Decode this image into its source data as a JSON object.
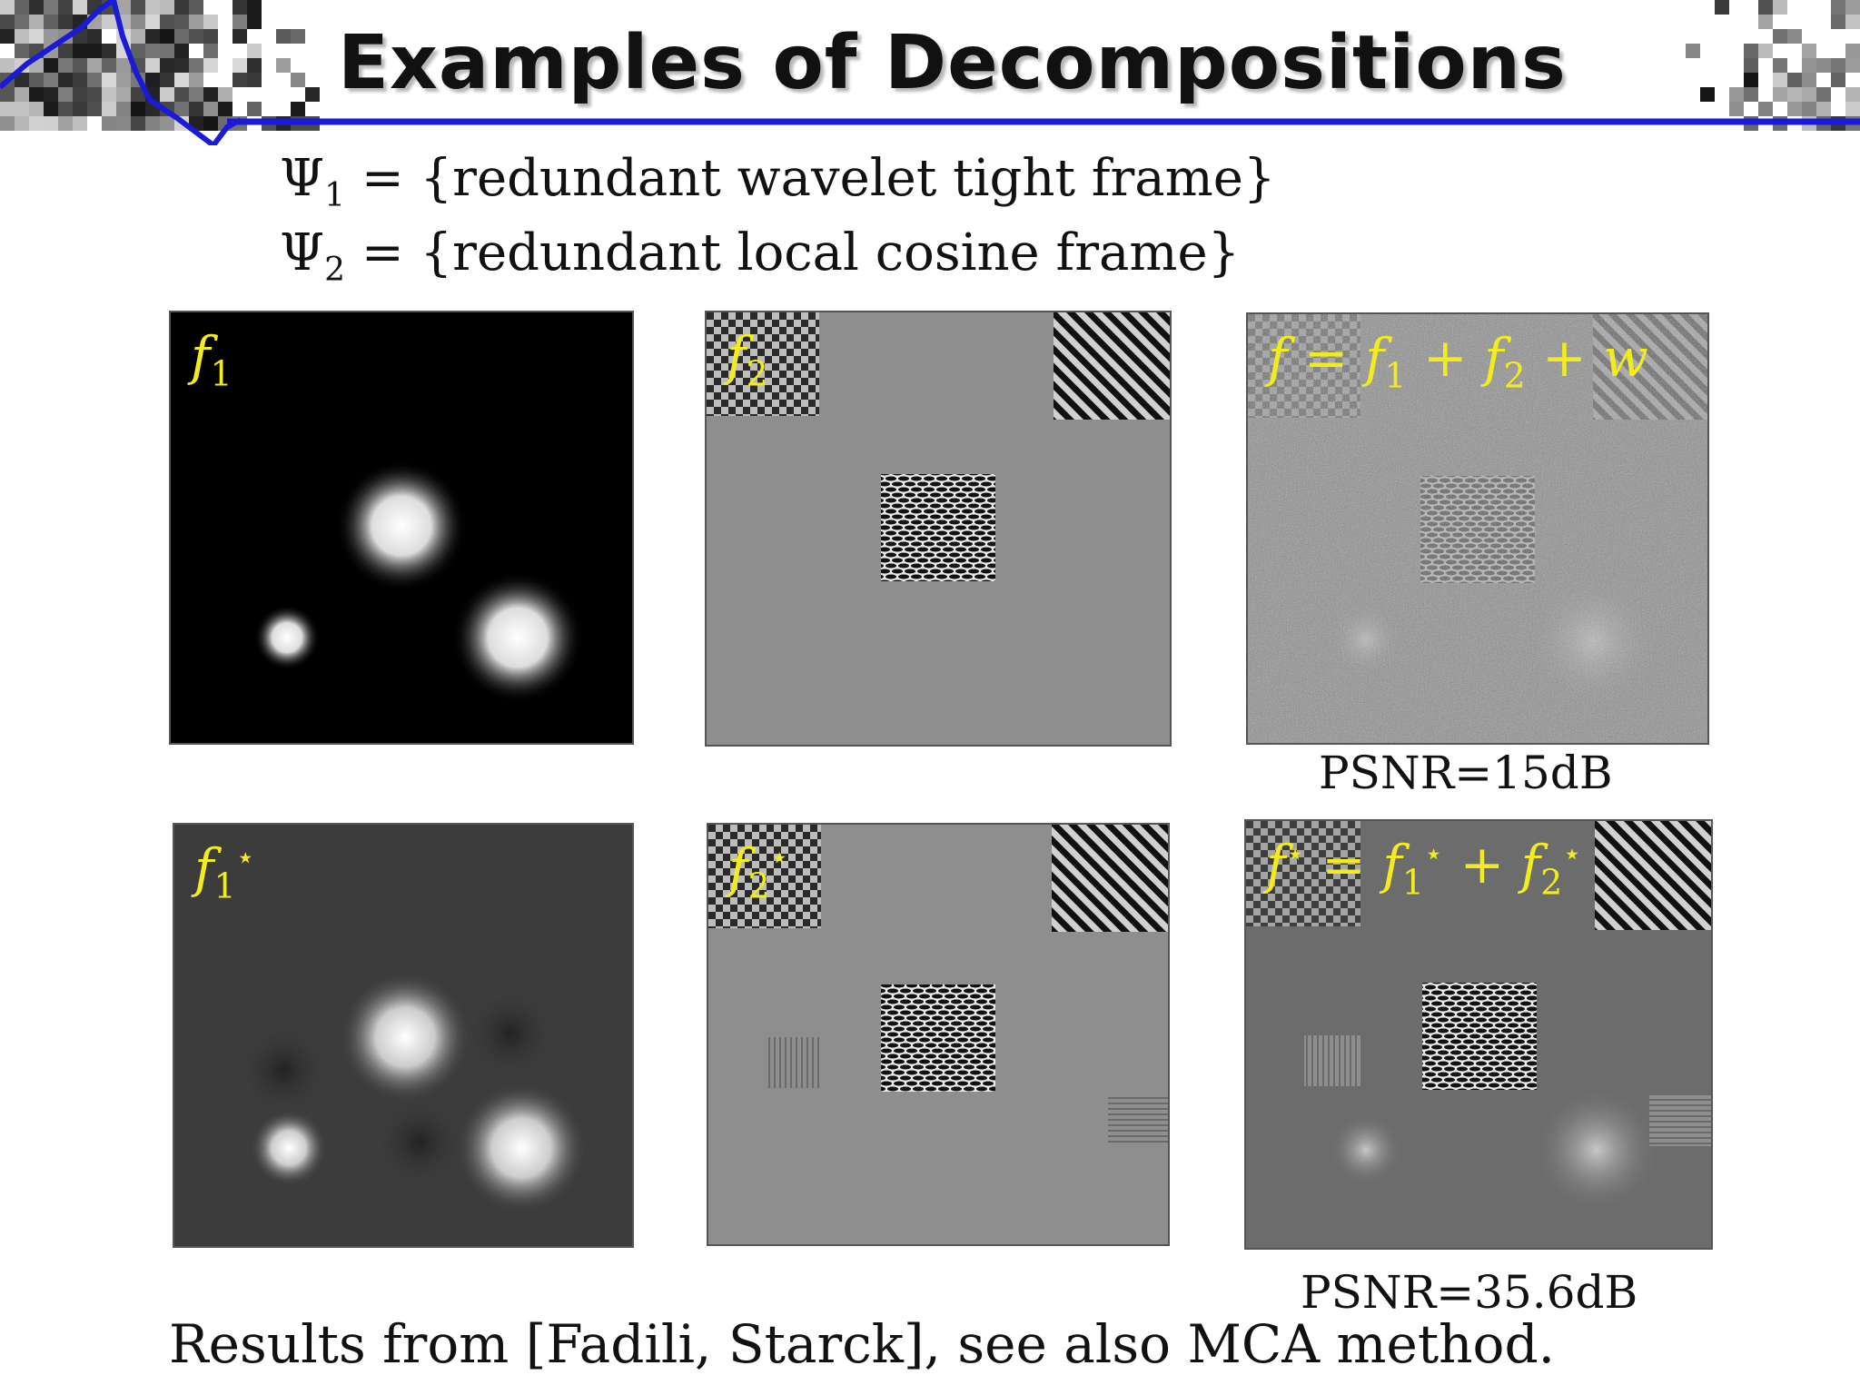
{
  "slide": {
    "title": "Examples of Decompositions",
    "definitions": [
      {
        "symbol": "Ψ",
        "index": "1",
        "text": " = {redundant wavelet tight frame}"
      },
      {
        "symbol": "Ψ",
        "index": "2",
        "text": " = {redundant local cosine frame}"
      }
    ]
  },
  "panels": {
    "top": [
      {
        "label_html_parts": {
          "f": "f",
          "sub": "1"
        }
      },
      {
        "label_html_parts": {
          "f": "f",
          "sub": "2"
        }
      },
      {
        "label_text": "f = f",
        "psnr": "PSNR=15dB"
      }
    ],
    "bottom": [
      {
        "label_html_parts": {
          "f": "f",
          "sub": "1",
          "sup": "⋆"
        }
      },
      {
        "label_html_parts": {
          "f": "f",
          "sub": "2",
          "sup": "⋆"
        }
      },
      {
        "psnr": "PSNR=35.6dB"
      }
    ]
  },
  "footer": {
    "caption": "Results from [Fadili, Starck], see also MCA method."
  },
  "colors": {
    "label": "#f2ec1e",
    "rule": "#1a1ad8",
    "background_gray": "#8e8e8e"
  }
}
